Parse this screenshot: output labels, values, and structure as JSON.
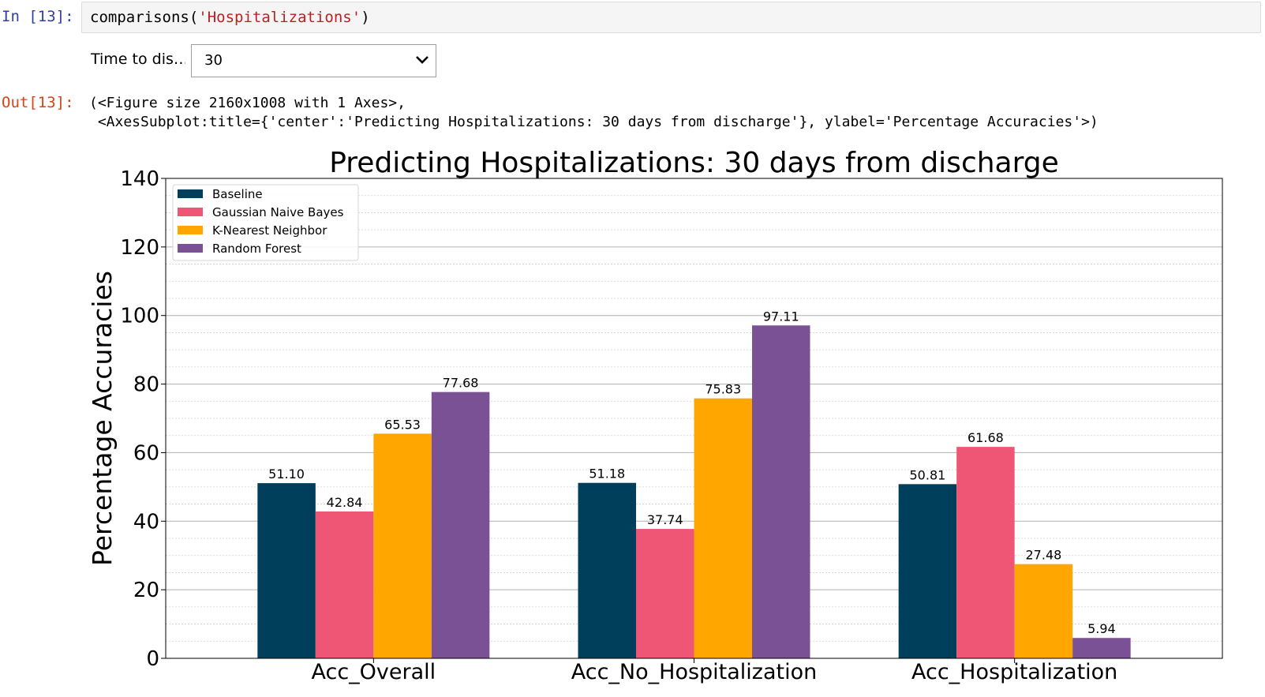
{
  "notebook": {
    "in_prompt": "In [13]:",
    "out_prompt": "Out[13]:",
    "code_func": "comparisons(",
    "code_arg": "'Hospitalizations'",
    "code_close": ")",
    "widget_label": "Time to dis…",
    "dropdown_value": "30",
    "output_line1": "(<Figure size 2160x1008 with 1 Axes>,",
    "output_line2": " <AxesSubplot:title={'center':'Predicting Hospitalizations: 30 days from discharge'}, ylabel='Percentage Accuracies'>)",
    "dropdown_icon": "chevron-down-icon"
  },
  "chart_data": {
    "type": "bar",
    "title": "Predicting Hospitalizations: 30 days from discharge",
    "xlabel": "",
    "ylabel": "Percentage Accuracies",
    "ylim": [
      0,
      140
    ],
    "yticks": [
      0,
      20,
      40,
      60,
      80,
      100,
      120,
      140
    ],
    "minor_grid_step": 5,
    "grid": true,
    "legend_position": "upper-left",
    "categories": [
      "Acc_Overall",
      "Acc_No_Hospitalization",
      "Acc_Hospitalization"
    ],
    "series": [
      {
        "name": "Baseline",
        "color": "#003f5c",
        "values": [
          51.1,
          51.18,
          50.81
        ],
        "labels": [
          "51.10",
          "51.18",
          "50.81"
        ]
      },
      {
        "name": "Gaussian Naive Bayes",
        "color": "#ef5675",
        "values": [
          42.84,
          37.74,
          61.68
        ],
        "labels": [
          "42.84",
          "37.74",
          "61.68"
        ]
      },
      {
        "name": "K-Nearest Neighbor",
        "color": "#ffa600",
        "values": [
          65.53,
          75.83,
          27.48
        ],
        "labels": [
          "65.53",
          "75.83",
          "27.48"
        ]
      },
      {
        "name": "Random Forest",
        "color": "#7a5195",
        "values": [
          77.68,
          97.11,
          5.94
        ],
        "labels": [
          "77.68",
          "97.11",
          "5.94"
        ]
      }
    ]
  }
}
